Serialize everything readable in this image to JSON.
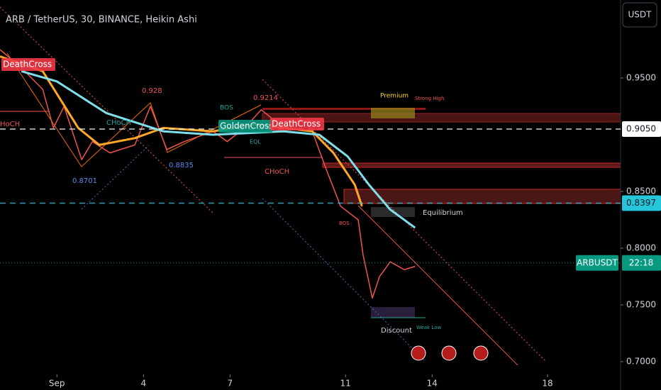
{
  "header": {
    "title": "ARB / TetherUS, 30, BINANCE, Heikin Ashi",
    "currency": "USDT"
  },
  "chart_data": {
    "type": "line",
    "xlim": [
      -0.97,
      20.53
    ],
    "xticks": [
      {
        "value": 1,
        "label": "Sep"
      },
      4,
      7,
      11,
      14,
      18
    ],
    "ylim": [
      0.675,
      1.01875
    ],
    "yticks": [
      {
        "value": 0.95,
        "label": "0.9500"
      },
      {
        "value": 0.85,
        "label": "0.8500"
      },
      {
        "value": 0.8,
        "label": "0.8000"
      },
      {
        "value": 0.75,
        "label": "0.7500"
      },
      {
        "value": 0.7,
        "label": "0.7000"
      }
    ],
    "series": [
      {
        "color": "#ef5350",
        "x": [
          -0.97,
          -0.23,
          0.51,
          0.88,
          1.25,
          1.86,
          2.23,
          2.84,
          3.7,
          4.24,
          4.81,
          5.42,
          6.41,
          6.9,
          7.51,
          8.08,
          8.86,
          9.85,
          10.34,
          10.83,
          11.44,
          11.61,
          11.93,
          12.18,
          12.55,
          13.04,
          13.41
        ],
        "values": [
          0.975,
          0.959,
          0.94,
          0.906,
          0.925,
          0.878,
          0.894,
          0.884,
          0.891,
          0.925,
          0.887,
          0.894,
          0.903,
          0.894,
          0.906,
          0.922,
          0.906,
          0.903,
          0.869,
          0.837,
          0.825,
          0.794,
          0.756,
          0.775,
          0.788,
          0.781,
          0.784
        ]
      },
      {
        "color": "#ffa726",
        "x": [
          -0.97,
          0.51,
          1.74,
          2.47,
          3.7,
          4.69,
          6.41,
          7.88,
          9.85,
          10.58,
          11.32,
          11.57
        ],
        "values": [
          0.969,
          0.956,
          0.906,
          0.891,
          0.897,
          0.906,
          0.903,
          0.909,
          0.903,
          0.884,
          0.856,
          0.837
        ]
      },
      {
        "color": "#80deea",
        "x": [
          -0.23,
          1.0,
          2.72,
          4.69,
          6.41,
          8.86,
          10.09,
          11.07,
          11.81,
          12.55,
          13.41
        ],
        "values": [
          0.956,
          0.947,
          0.919,
          0.903,
          0.9,
          0.903,
          0.9,
          0.881,
          0.856,
          0.834,
          0.818
        ]
      }
    ],
    "price_lines": [
      {
        "value": 0.905,
        "label": "0.9050",
        "color": "#ffffff"
      },
      {
        "value": 0.8397,
        "label": "0.8397",
        "color": "#26c6da"
      }
    ],
    "last": {
      "symbol": "ARBUSDT",
      "countdown": "22:18",
      "value": 0.787,
      "color": "#089981"
    },
    "annotations": [
      "DeathCross",
      "GoldenCross",
      "DeathCross",
      "0.928",
      "0.9214",
      "0.8701",
      "0.8835",
      "HoCH",
      "CHoCH",
      "BOS",
      "CHoCH",
      "EQL",
      "Premium",
      "Strong High",
      "Equilibrium",
      "Discount",
      "Weak Low",
      "BOS"
    ]
  }
}
